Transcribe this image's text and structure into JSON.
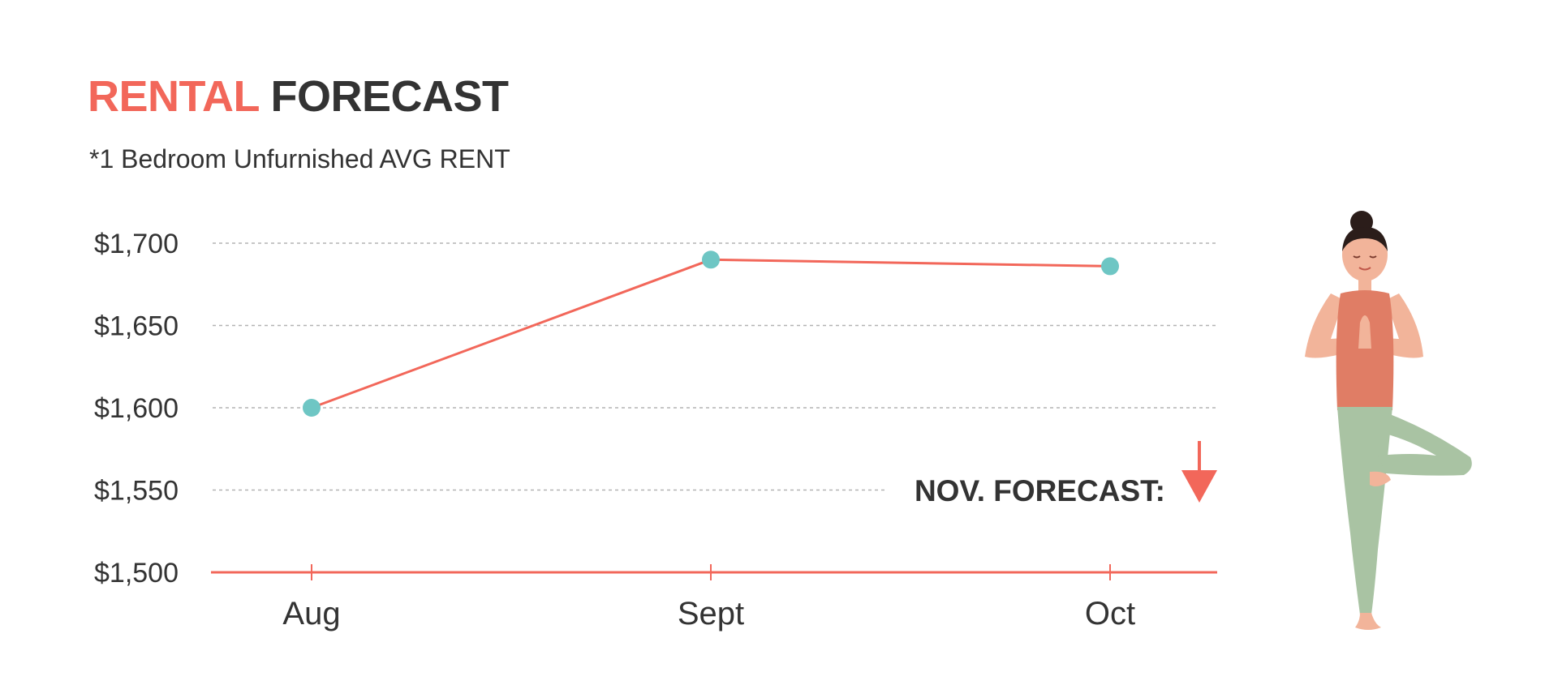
{
  "header": {
    "title_accent": "RENTAL",
    "title_main": "FORECAST",
    "subtitle": "*1 Bedroom Unfurnished AVG RENT"
  },
  "colors": {
    "accent": "#f2675a",
    "text": "#333333",
    "marker": "#6ec6c4",
    "grid": "#b3b3b3"
  },
  "chart_data": {
    "type": "line",
    "title": "RENTAL FORECAST",
    "subtitle": "*1 Bedroom Unfurnished AVG RENT",
    "categories": [
      "Aug",
      "Sept",
      "Oct"
    ],
    "values": [
      1600,
      1690,
      1686
    ],
    "y_ticks": [
      "$1,700",
      "$1,650",
      "$1,600",
      "$1,550",
      "$1,500"
    ],
    "y_tick_values": [
      1700,
      1650,
      1600,
      1550,
      1500
    ],
    "ylim": [
      1500,
      1700
    ],
    "grid": true,
    "annotation": {
      "text": "NOV. FORECAST:",
      "direction": "down"
    }
  },
  "illustration": {
    "icon": "yoga-tree-pose-woman-icon"
  }
}
